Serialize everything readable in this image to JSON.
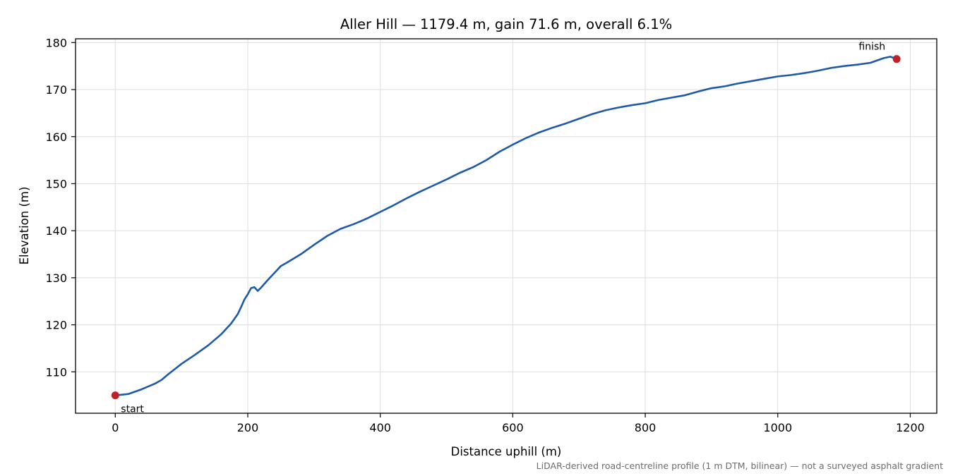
{
  "chart_data": {
    "type": "line",
    "title": "Aller Hill — 1179.4 m, gain 71.6 m, overall 6.1%",
    "xlabel": "Distance uphill (m)",
    "ylabel": "Elevation (m)",
    "xlim": [
      -60,
      1240
    ],
    "ylim": [
      101.2,
      180.8
    ],
    "xticks": [
      0,
      200,
      400,
      600,
      800,
      1000,
      1200
    ],
    "yticks": [
      110,
      120,
      130,
      140,
      150,
      160,
      170,
      180
    ],
    "grid": true,
    "series": [
      {
        "color": "#1f5aa8",
        "x": [
          0,
          20,
          40,
          60,
          70,
          80,
          100,
          120,
          140,
          160,
          175,
          185,
          190,
          195,
          200,
          205,
          210,
          215,
          220,
          230,
          240,
          250,
          260,
          280,
          300,
          320,
          340,
          360,
          380,
          400,
          420,
          440,
          460,
          480,
          500,
          520,
          540,
          560,
          580,
          600,
          620,
          640,
          660,
          680,
          700,
          720,
          740,
          760,
          780,
          800,
          820,
          840,
          860,
          880,
          900,
          920,
          940,
          960,
          980,
          1000,
          1020,
          1040,
          1060,
          1080,
          1100,
          1120,
          1140,
          1160,
          1170,
          1179.4
        ],
        "y": [
          105.0,
          105.3,
          106.3,
          107.5,
          108.3,
          109.5,
          111.7,
          113.6,
          115.6,
          118.0,
          120.3,
          122.3,
          123.8,
          125.4,
          126.5,
          127.8,
          128.0,
          127.2,
          127.9,
          129.5,
          131.0,
          132.5,
          133.3,
          135.0,
          137.0,
          138.9,
          140.4,
          141.4,
          142.6,
          144.0,
          145.4,
          146.9,
          148.3,
          149.6,
          150.9,
          152.3,
          153.5,
          155.0,
          156.8,
          158.3,
          159.7,
          160.9,
          161.9,
          162.8,
          163.8,
          164.8,
          165.6,
          166.2,
          166.7,
          167.1,
          167.8,
          168.3,
          168.8,
          169.6,
          170.3,
          170.7,
          171.3,
          171.8,
          172.3,
          172.8,
          173.1,
          173.5,
          174.0,
          174.6,
          175.0,
          175.3,
          175.7,
          176.7,
          177.0,
          176.5
        ]
      }
    ],
    "markers": [
      {
        "x": 0,
        "y": 105.0,
        "label": "start",
        "color": "#c0202a"
      },
      {
        "x": 1179.4,
        "y": 176.5,
        "label": "finish",
        "color": "#c0202a"
      }
    ],
    "footnote": "LiDAR-derived road-centreline profile (1 m DTM, bilinear) — not a surveyed asphalt gradient"
  }
}
